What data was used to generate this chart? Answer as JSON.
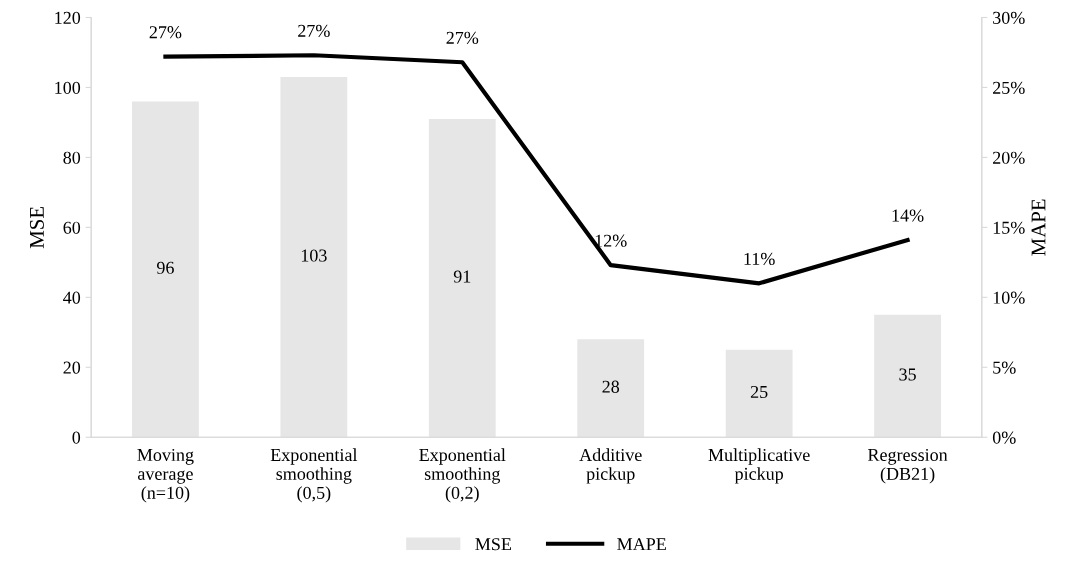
{
  "chart_data": {
    "type": "bar",
    "categories": [
      "Moving\naverage\n(n=10)",
      "Exponential\nsmoothing\n(0,5)",
      "Exponential\nsmoothing\n(0,2)",
      "Additive\npickup",
      "Multiplicative\npickup",
      "Regression\n(DB21)"
    ],
    "series": [
      {
        "name": "MSE",
        "color": "#e6e6e6",
        "values": [
          96,
          103,
          91,
          28,
          25,
          35
        ],
        "value_labels": [
          "96",
          "103",
          "91",
          "28",
          "25",
          "35"
        ]
      },
      {
        "name": "MAPE",
        "type": "line",
        "axis": "y2",
        "color": "#000000",
        "values": [
          27.2,
          27.3,
          26.8,
          12.3,
          11.0,
          14.1
        ],
        "value_labels": [
          "27%",
          "27%",
          "27%",
          "12%",
          "11%",
          "14%"
        ]
      }
    ],
    "ylabel": "MSE",
    "y2label": "MAPE",
    "ylim": [
      0,
      120
    ],
    "yticks": [
      0,
      20,
      40,
      60,
      80,
      100,
      120
    ],
    "y2lim": [
      0,
      30
    ],
    "y2ticks": [
      {
        "value": 0,
        "label": "0%"
      },
      {
        "value": 5,
        "label": "5%"
      },
      {
        "value": 10,
        "label": "10%"
      },
      {
        "value": 15,
        "label": "15%"
      },
      {
        "value": 20,
        "label": "20%"
      },
      {
        "value": 25,
        "label": "25%"
      },
      {
        "value": 30,
        "label": "30%"
      }
    ],
    "legend": "bottom",
    "grid": false,
    "marker": "none",
    "line_style": "solid"
  }
}
